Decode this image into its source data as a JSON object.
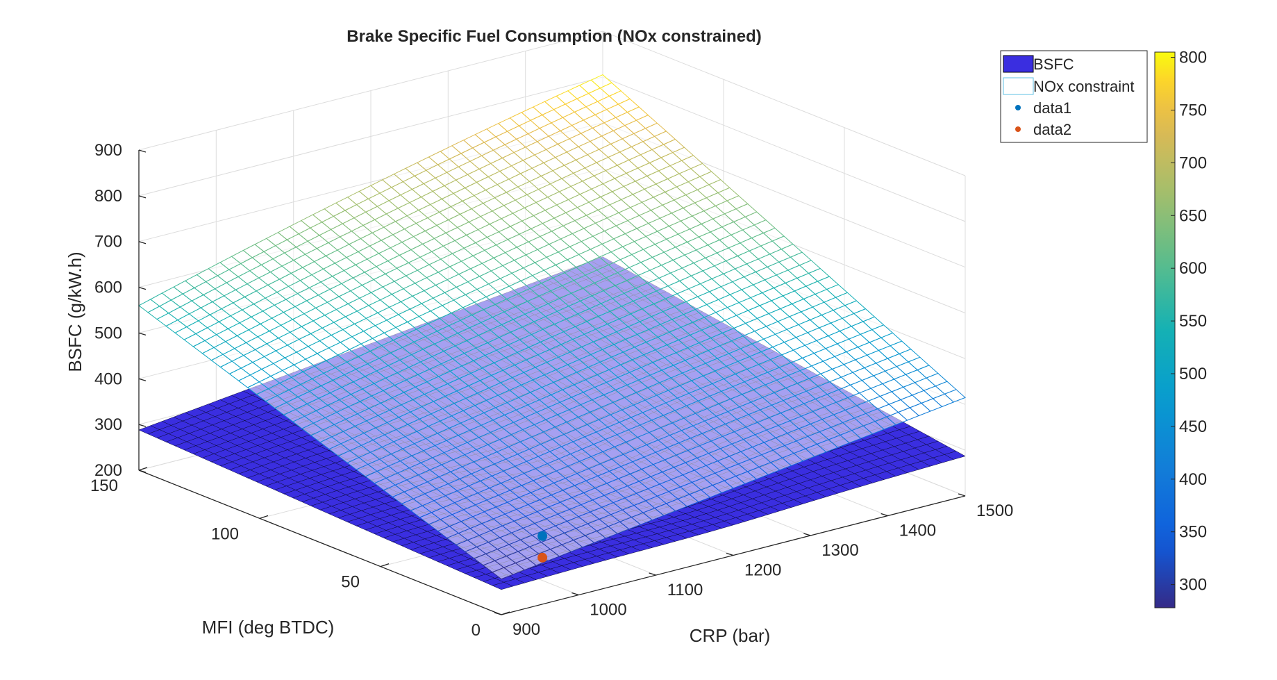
{
  "chart_data": {
    "type": "surface3d",
    "title": "Brake Specific Fuel Consumption (NOx constrained)",
    "xlabel": "CRP (bar)",
    "ylabel": "MFI (deg BTDC)",
    "zlabel": "BSFC (g/kW.h)",
    "xlim": [
      900,
      1500
    ],
    "ylim": [
      0,
      150
    ],
    "zlim": [
      200,
      900
    ],
    "xticks": [
      "900",
      "1000",
      "1100",
      "1200",
      "1300",
      "1400",
      "1500"
    ],
    "yticks": [
      "0",
      "50",
      "100",
      "150"
    ],
    "zticks": [
      "200",
      "300",
      "400",
      "500",
      "600",
      "700",
      "800",
      "900"
    ],
    "grid": true,
    "legend_position": "top-right",
    "legend": [
      "BSFC",
      "NOx constraint",
      "data1",
      "data2"
    ],
    "colorbar": {
      "limits": [
        278,
        805
      ],
      "ticks": [
        "300",
        "350",
        "400",
        "450",
        "500",
        "550",
        "600",
        "650",
        "700",
        "750",
        "800"
      ],
      "colormap": "parula"
    },
    "surfaces": [
      {
        "name": "BSFC",
        "style": "filled",
        "color": "#3a2ee0",
        "corners": {
          "x900_y0": 255,
          "x1500_y0": 287,
          "x900_y150": 288,
          "x1500_y150": 407
        },
        "min_point": {
          "x": 1180,
          "y": 60,
          "z": 262
        }
      },
      {
        "name": "NOx constraint",
        "style": "mesh",
        "corners": {
          "x900_y0": 278,
          "x1500_y0": 415,
          "x900_y150": 560,
          "x1500_y150": 805
        }
      }
    ],
    "points": [
      {
        "name": "data1",
        "x": 1000,
        "y": 15,
        "z": 297,
        "color": "#0072bd"
      },
      {
        "name": "data2",
        "x": 1000,
        "y": 15,
        "z": 250,
        "color": "#d95319"
      }
    ]
  }
}
